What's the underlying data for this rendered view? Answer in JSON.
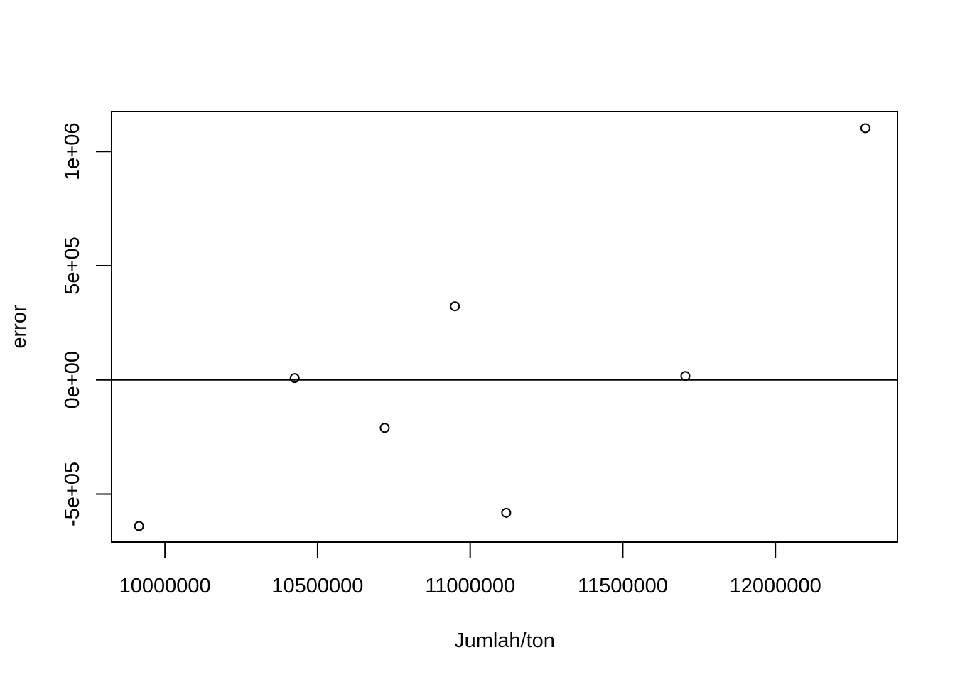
{
  "chart_data": {
    "type": "scatter",
    "title": "",
    "xlabel": "Jumlah/ton",
    "ylabel": "error",
    "xlim": [
      9825000,
      12400000
    ],
    "ylim": [
      -710000,
      1175000
    ],
    "x_ticks": [
      10000000,
      10500000,
      11000000,
      11500000,
      12000000
    ],
    "x_tick_labels": [
      "10000000",
      "10500000",
      "11000000",
      "11500000",
      "12000000"
    ],
    "y_ticks": [
      -500000,
      0,
      500000,
      1000000
    ],
    "y_tick_labels": [
      "-5e+05",
      "0e+00",
      "5e+05",
      "1e+06"
    ],
    "reference_line_y": 0,
    "grid": false,
    "legend": "none",
    "point_color": "#000000",
    "points": [
      {
        "x": 9915000,
        "y": -640000
      },
      {
        "x": 10425000,
        "y": 8000
      },
      {
        "x": 10720000,
        "y": -210000
      },
      {
        "x": 10950000,
        "y": 322000
      },
      {
        "x": 11118000,
        "y": -582000
      },
      {
        "x": 11705000,
        "y": 17000
      },
      {
        "x": 12295000,
        "y": 1102000
      }
    ]
  }
}
